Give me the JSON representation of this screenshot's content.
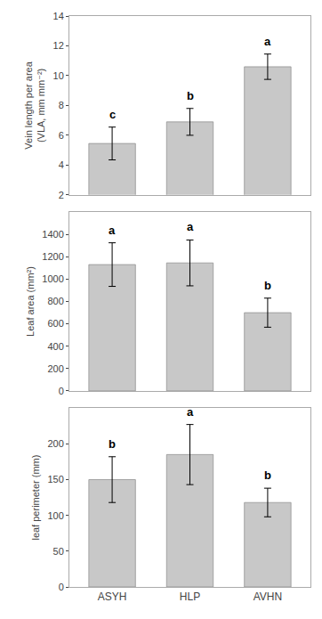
{
  "chart_data": [
    {
      "type": "bar",
      "categories": [
        "ASYH",
        "HLP",
        "AVHN"
      ],
      "values": [
        5.45,
        6.9,
        10.6
      ],
      "errors": [
        1.1,
        0.9,
        0.85
      ],
      "annotations": [
        "c",
        "b",
        "a"
      ],
      "ylabel": "Vein length per area\n(VLA, mm mm⁻²)",
      "ylim": [
        2,
        14
      ],
      "yticks": [
        2,
        4,
        6,
        8,
        10,
        12,
        14
      ],
      "color": "#c8c8c8",
      "grid": false,
      "tick_labels": "y"
    },
    {
      "type": "bar",
      "categories": [
        "ASYH",
        "HLP",
        "AVHN"
      ],
      "values": [
        1130,
        1145,
        700
      ],
      "errors": [
        195,
        205,
        130
      ],
      "annotations": [
        "a",
        "a",
        "b"
      ],
      "ylabel": "Leaf area (mm²)",
      "ylim": [
        0,
        1600
      ],
      "yticks": [
        0,
        200,
        400,
        600,
        800,
        1000,
        1200,
        1400
      ],
      "color": "#c8c8c8",
      "grid": false,
      "tick_labels": "y"
    },
    {
      "type": "bar",
      "categories": [
        "ASYH",
        "HLP",
        "AVHN"
      ],
      "values": [
        150,
        185,
        118
      ],
      "errors": [
        32,
        42,
        20
      ],
      "annotations": [
        "b",
        "a",
        "b"
      ],
      "ylabel": "leaf perimeter (mm)",
      "ylim": [
        0,
        250
      ],
      "yticks": [
        0,
        50,
        100,
        150,
        200
      ],
      "color": "#c8c8c8",
      "grid": false
    }
  ]
}
